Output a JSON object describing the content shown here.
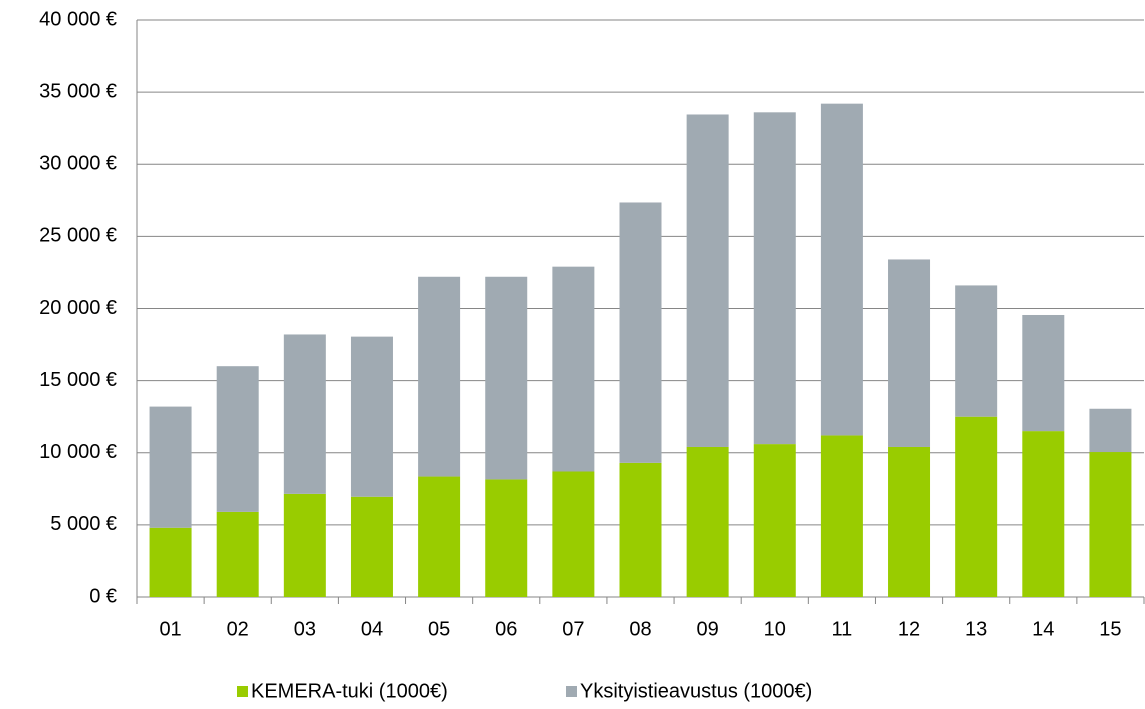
{
  "chart_data": {
    "type": "stacked_bar",
    "categories": [
      "01",
      "02",
      "03",
      "04",
      "05",
      "06",
      "07",
      "08",
      "09",
      "10",
      "11",
      "12",
      "13",
      "14",
      "15"
    ],
    "series": [
      {
        "name": "KEMERA-tuki (1000€)",
        "color": "#99cc00",
        "values": [
          4800,
          5900,
          7150,
          6950,
          8350,
          8150,
          8700,
          9300,
          10400,
          10600,
          11200,
          10400,
          12500,
          11500,
          10050
        ]
      },
      {
        "name": "Yksityistieavustus (1000€)",
        "color": "#a0aab2",
        "values": [
          8400,
          10100,
          11050,
          11100,
          13850,
          14050,
          14200,
          18050,
          23050,
          23000,
          23000,
          13000,
          9100,
          8050,
          3000
        ]
      }
    ],
    "ylim": [
      0,
      40000
    ],
    "yticks": [
      {
        "value": 0,
        "label": "0 €"
      },
      {
        "value": 5000,
        "label": "5 000 €"
      },
      {
        "value": 10000,
        "label": "10 000 €"
      },
      {
        "value": 15000,
        "label": "15 000 €"
      },
      {
        "value": 20000,
        "label": "20 000 €"
      },
      {
        "value": 25000,
        "label": "25 000 €"
      },
      {
        "value": 30000,
        "label": "30 000 €"
      },
      {
        "value": 35000,
        "label": "35 000 €"
      },
      {
        "value": 40000,
        "label": "40 000 €"
      }
    ],
    "grid": true,
    "legend": "bottom"
  }
}
